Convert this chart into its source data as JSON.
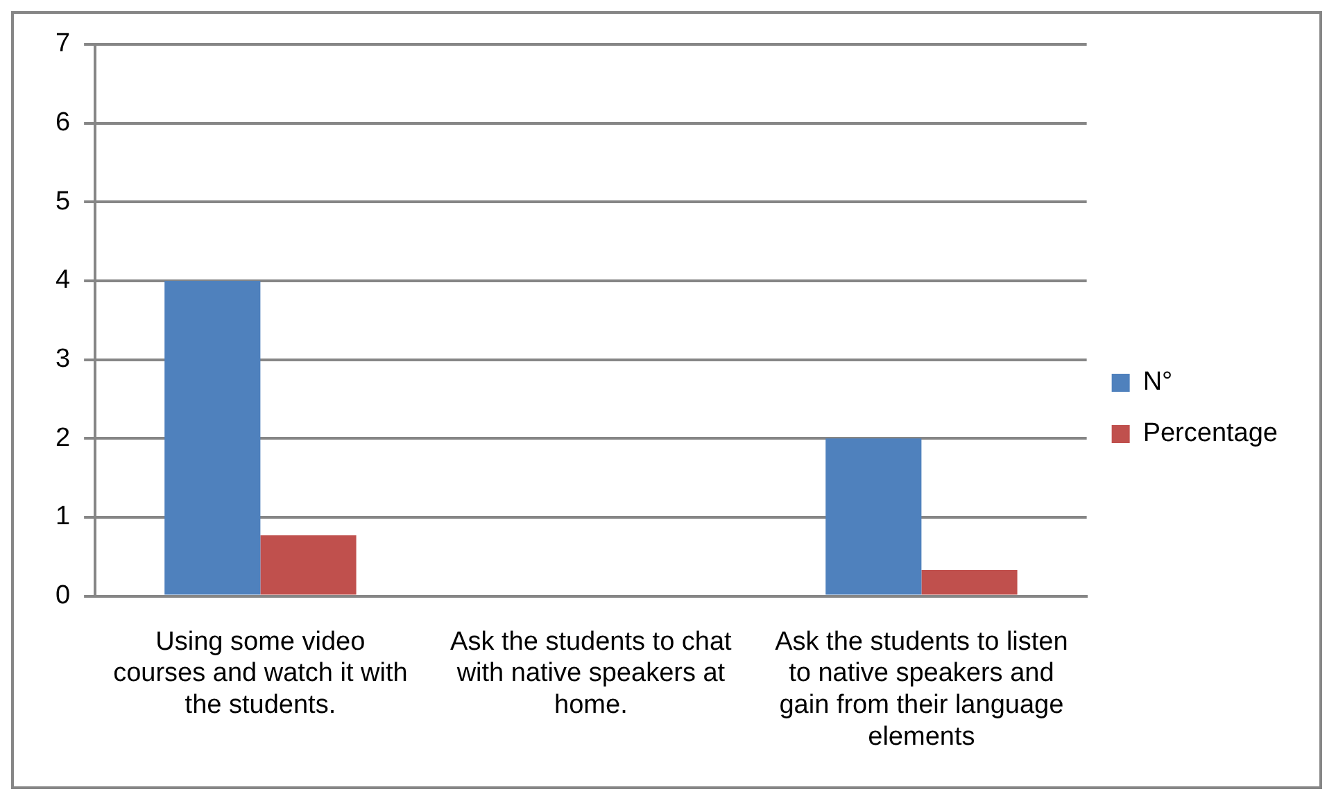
{
  "chart_data": {
    "type": "bar",
    "categories": [
      "Using some video courses and watch it with the students.",
      "Ask the students to chat with native speakers at home.",
      "Ask the students to listen to native speakers and gain from their language elements"
    ],
    "series": [
      {
        "name": "N°",
        "color": "#4f81bd",
        "values": [
          4,
          0,
          2
        ]
      },
      {
        "name": "Percentage",
        "color": "#c0504d",
        "values": [
          0.77,
          0,
          0.33
        ]
      }
    ],
    "ylim": [
      0,
      7
    ],
    "yticks": [
      0,
      1,
      2,
      3,
      4,
      5,
      6,
      7
    ],
    "grid": "y",
    "legend": "right"
  }
}
